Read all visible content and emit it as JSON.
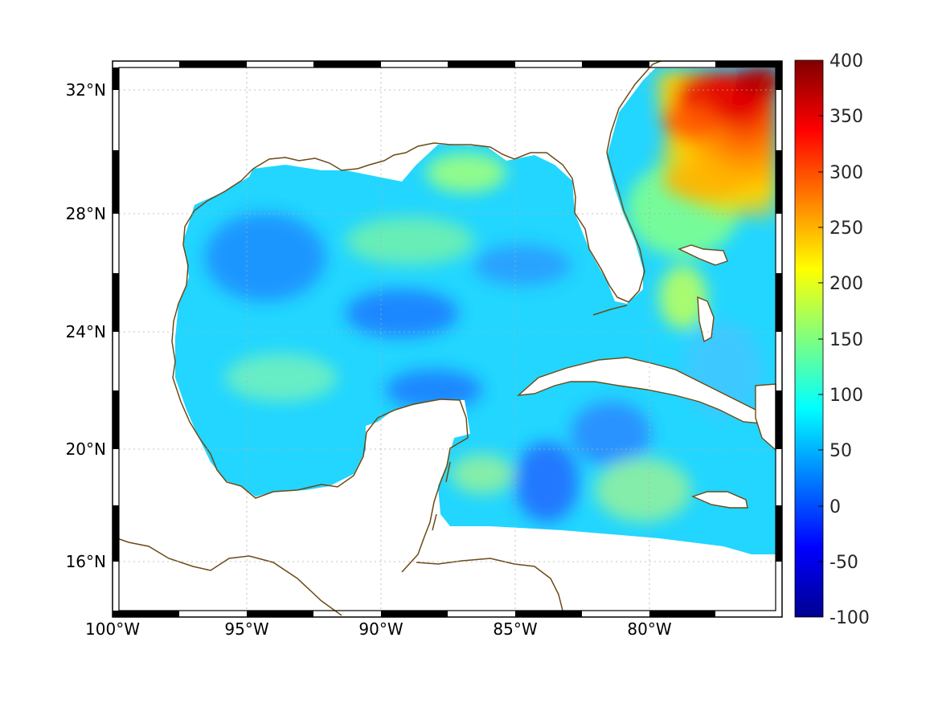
{
  "map": {
    "region": "Gulf of Mexico / Caribbean",
    "lon_range": [
      -100,
      -75
    ],
    "lat_range": [
      14.4,
      32.9
    ],
    "colormap": "jet",
    "coastline_color": "#6b4a16",
    "grid": "dotted",
    "frame": "black-white-checkered",
    "x_ticks": [
      {
        "label": "100°W",
        "lon": -100
      },
      {
        "label": "95°W",
        "lon": -95
      },
      {
        "label": "90°W",
        "lon": -90
      },
      {
        "label": "85°W",
        "lon": -85
      },
      {
        "label": "80°W",
        "lon": -80
      }
    ],
    "y_ticks": [
      {
        "label": "32°N",
        "lat": 32
      },
      {
        "label": "28°N",
        "lat": 28
      },
      {
        "label": "24°N",
        "lat": 24
      },
      {
        "label": "20°N",
        "lat": 20
      },
      {
        "label": "16°N",
        "lat": 16
      }
    ]
  },
  "colorbar": {
    "min": -100,
    "max": 400,
    "ticks": [
      "400",
      "350",
      "300",
      "250",
      "200",
      "150",
      "100",
      "50",
      "0",
      "-50",
      "-100"
    ]
  }
}
